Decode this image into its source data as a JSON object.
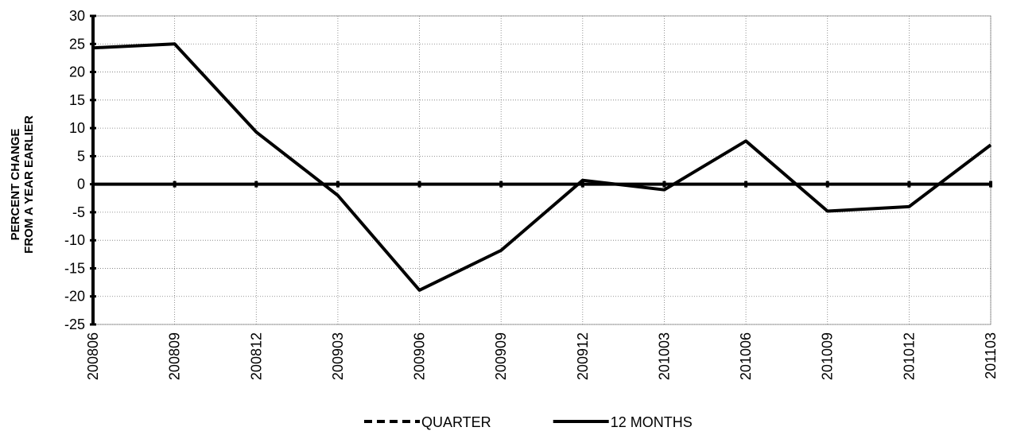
{
  "chart_data": {
    "type": "line",
    "y_label": [
      "PERCENT CHANGE",
      "FROM A YEAR EARLIER"
    ],
    "categories": [
      "200806",
      "200809",
      "200812",
      "200903",
      "200906",
      "200909",
      "200912",
      "201003",
      "201006",
      "201009",
      "201012",
      "201103"
    ],
    "series": [
      {
        "name": "QUARTER",
        "color": "#000000",
        "dashed": true,
        "values": [
          null,
          null,
          null,
          null,
          null,
          null,
          null,
          null,
          null,
          null,
          null,
          null
        ]
      },
      {
        "name": "12 MONTHS",
        "color": "#000000",
        "dashed": false,
        "values": [
          24.3,
          25,
          9.3,
          -2,
          -18.9,
          -11.8,
          0.7,
          -1,
          7.7,
          -4.8,
          -4,
          7
        ]
      }
    ],
    "ylim": [
      -25,
      30
    ],
    "yticks": [
      -25,
      -20,
      -15,
      -10,
      -5,
      0,
      5,
      10,
      15,
      20,
      25,
      30
    ],
    "grid": true,
    "legend": "bottom"
  }
}
